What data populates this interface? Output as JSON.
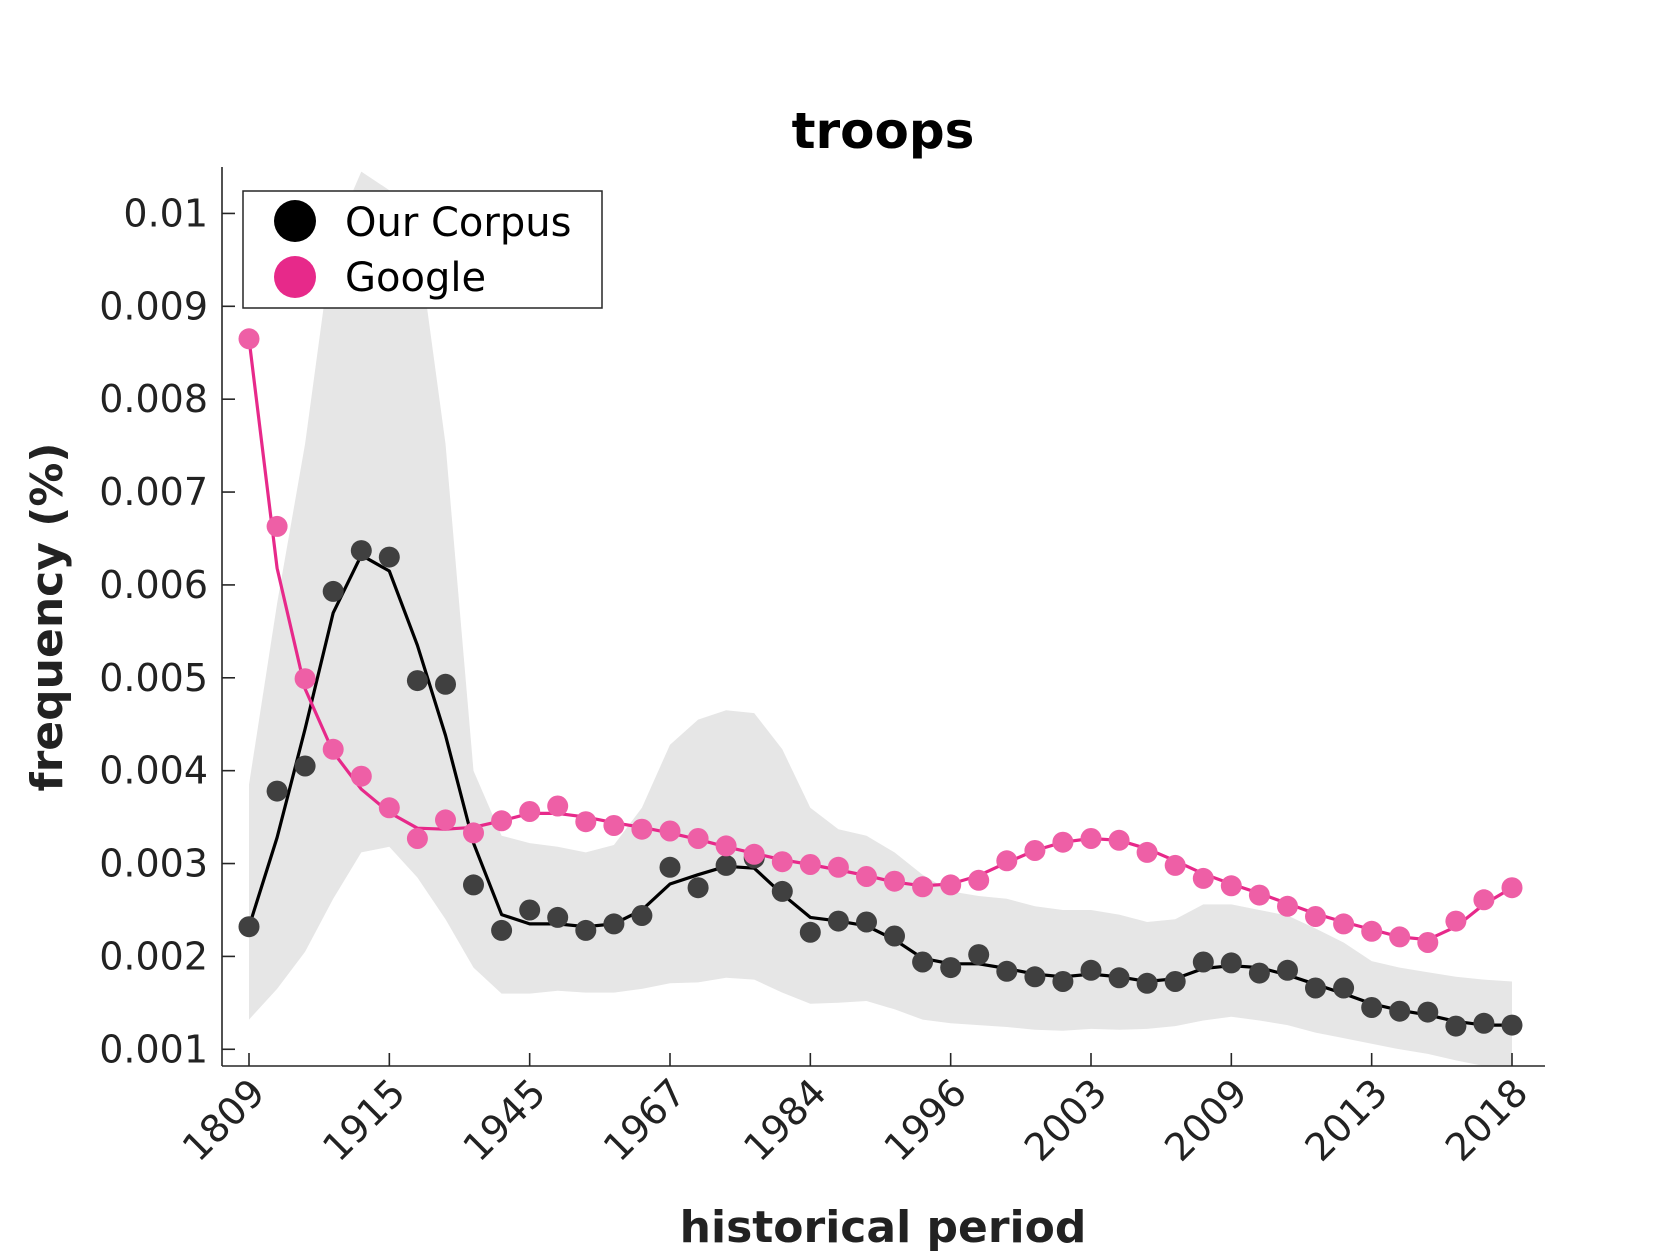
{
  "chart_data": {
    "type": "line",
    "title": "troops",
    "xlabel": "historical period",
    "ylabel": "frequency (%)",
    "x_tick_labels": [
      "1809",
      "1915",
      "1945",
      "1967",
      "1984",
      "1996",
      "2003",
      "2009",
      "2013",
      "2018"
    ],
    "y_ticks": [
      0.001,
      0.002,
      0.003,
      0.004,
      0.005,
      0.006,
      0.007,
      0.008,
      0.009,
      0.01
    ],
    "y_tick_labels": [
      "0.001",
      "0.002",
      "0.003",
      "0.004",
      "0.005",
      "0.006",
      "0.007",
      "0.008",
      "0.009",
      "0.01"
    ],
    "ylim": [
      0.00082,
      0.0105
    ],
    "legend_position": "top-left",
    "grid": false,
    "series": [
      {
        "name": "Our Corpus",
        "color": "#000000",
        "marker_color": "#404040",
        "points": [
          0.00232,
          0.00378,
          0.00405,
          0.00593,
          0.00637,
          0.0063,
          0.00497,
          0.00493,
          0.00277,
          0.00228,
          0.0025,
          0.00242,
          0.00228,
          0.00235,
          0.00244,
          0.00296,
          0.00274,
          0.00298,
          0.00306,
          0.0027,
          0.00226,
          0.00238,
          0.00237,
          0.00222,
          0.00194,
          0.00188,
          0.00202,
          0.00184,
          0.00178,
          0.00173,
          0.00185,
          0.00177,
          0.00171,
          0.00173,
          0.00194,
          0.00193,
          0.00182,
          0.00185,
          0.00166,
          0.00166,
          0.00145,
          0.00141,
          0.0014,
          0.00125,
          0.00128,
          0.00126
        ],
        "line": [
          0.00232,
          0.00328,
          0.00445,
          0.0057,
          0.00632,
          0.00615,
          0.00535,
          0.00438,
          0.00322,
          0.00245,
          0.00235,
          0.00235,
          0.00232,
          0.00235,
          0.0025,
          0.00278,
          0.00288,
          0.00297,
          0.00295,
          0.00267,
          0.00242,
          0.00238,
          0.00233,
          0.00218,
          0.00198,
          0.00192,
          0.00192,
          0.00187,
          0.00181,
          0.00178,
          0.00181,
          0.00178,
          0.00173,
          0.00176,
          0.00187,
          0.0019,
          0.00188,
          0.0018,
          0.0017,
          0.0016,
          0.00149,
          0.00142,
          0.00137,
          0.0013,
          0.00126,
          0.00126
        ],
        "band_upper": [
          0.00385,
          0.0058,
          0.00752,
          0.00975,
          0.01045,
          0.01025,
          0.00975,
          0.00752,
          0.004,
          0.0033,
          0.00322,
          0.00318,
          0.00312,
          0.0032,
          0.0036,
          0.00428,
          0.00455,
          0.00465,
          0.00462,
          0.00423,
          0.0036,
          0.00337,
          0.0033,
          0.00312,
          0.00288,
          0.0027,
          0.00265,
          0.00262,
          0.00254,
          0.0025,
          0.0025,
          0.00245,
          0.00237,
          0.0024,
          0.00256,
          0.00256,
          0.0025,
          0.00244,
          0.0023,
          0.00215,
          0.00195,
          0.00188,
          0.00183,
          0.00178,
          0.00175,
          0.00173
        ],
        "band_lower": [
          0.00132,
          0.00165,
          0.00205,
          0.00262,
          0.00312,
          0.00318,
          0.00285,
          0.0024,
          0.00188,
          0.0016,
          0.0016,
          0.00163,
          0.00161,
          0.00161,
          0.00165,
          0.00171,
          0.00172,
          0.00177,
          0.00175,
          0.00161,
          0.00149,
          0.0015,
          0.00152,
          0.00143,
          0.00132,
          0.00128,
          0.00126,
          0.00124,
          0.00121,
          0.0012,
          0.00122,
          0.00121,
          0.00122,
          0.00125,
          0.00131,
          0.00135,
          0.00131,
          0.00126,
          0.00118,
          0.00112,
          0.00106,
          0.001,
          0.00095,
          0.00088,
          0.00082,
          0.00082
        ]
      },
      {
        "name": "Google",
        "color": "#e7298a",
        "marker_color": "#ee5fa6",
        "points": [
          0.00865,
          0.00663,
          0.00499,
          0.00423,
          0.00394,
          0.0036,
          0.00327,
          0.00347,
          0.00333,
          0.00346,
          0.00356,
          0.00362,
          0.00345,
          0.00341,
          0.00337,
          0.00335,
          0.00327,
          0.00319,
          0.0031,
          0.00302,
          0.00299,
          0.00296,
          0.00286,
          0.00281,
          0.00275,
          0.00277,
          0.00282,
          0.00303,
          0.00314,
          0.00323,
          0.00327,
          0.00325,
          0.00312,
          0.00298,
          0.00284,
          0.00276,
          0.00266,
          0.00254,
          0.00243,
          0.00235,
          0.00227,
          0.00221,
          0.00215,
          0.00238,
          0.00261,
          0.00274
        ],
        "line": [
          0.00865,
          0.00618,
          0.00488,
          0.0042,
          0.0038,
          0.00355,
          0.00338,
          0.00337,
          0.00339,
          0.00346,
          0.00354,
          0.00354,
          0.0035,
          0.00344,
          0.00339,
          0.00333,
          0.00326,
          0.00318,
          0.00311,
          0.00304,
          0.00299,
          0.00293,
          0.00287,
          0.0028,
          0.00276,
          0.00278,
          0.00287,
          0.00301,
          0.00314,
          0.00323,
          0.00327,
          0.00325,
          0.00316,
          0.00303,
          0.00289,
          0.00278,
          0.00268,
          0.00257,
          0.00246,
          0.00237,
          0.00229,
          0.00221,
          0.00218,
          0.00232,
          0.00256,
          0.00274
        ]
      }
    ]
  }
}
